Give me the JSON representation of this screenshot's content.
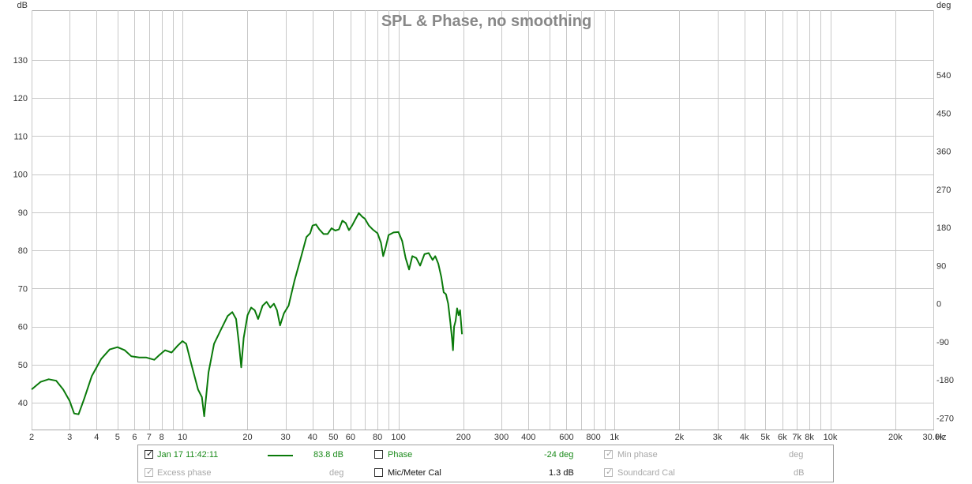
{
  "chart_data": {
    "type": "line",
    "title": "SPL & Phase, no smoothing",
    "left_axis_unit": "dB",
    "right_axis_unit": "deg",
    "x_unit": "Hz",
    "x_scale": "log",
    "xlim": [
      2,
      30000
    ],
    "ylim": [
      33,
      143
    ],
    "y2lim": [
      -297,
      693
    ],
    "grid": true,
    "y_ticks": [
      40,
      50,
      60,
      70,
      80,
      90,
      100,
      110,
      120,
      130
    ],
    "y2_ticks": [
      "-270",
      "-180",
      "-90",
      "0",
      "90",
      "180",
      "270",
      "360",
      "450",
      "540"
    ],
    "x_tick_labels": [
      {
        "v": 2,
        "t": "2"
      },
      {
        "v": 3,
        "t": "3"
      },
      {
        "v": 4,
        "t": "4"
      },
      {
        "v": 5,
        "t": "5"
      },
      {
        "v": 6,
        "t": "6"
      },
      {
        "v": 7,
        "t": "7"
      },
      {
        "v": 8,
        "t": "8"
      },
      {
        "v": 10,
        "t": "10"
      },
      {
        "v": 20,
        "t": "20"
      },
      {
        "v": 30,
        "t": "30"
      },
      {
        "v": 40,
        "t": "40"
      },
      {
        "v": 50,
        "t": "50"
      },
      {
        "v": 60,
        "t": "60"
      },
      {
        "v": 80,
        "t": "80"
      },
      {
        "v": 100,
        "t": "100"
      },
      {
        "v": 200,
        "t": "200"
      },
      {
        "v": 300,
        "t": "300"
      },
      {
        "v": 400,
        "t": "400"
      },
      {
        "v": 600,
        "t": "600"
      },
      {
        "v": 800,
        "t": "800"
      },
      {
        "v": 1000,
        "t": "1k"
      },
      {
        "v": 2000,
        "t": "2k"
      },
      {
        "v": 3000,
        "t": "3k"
      },
      {
        "v": 4000,
        "t": "4k"
      },
      {
        "v": 5000,
        "t": "5k"
      },
      {
        "v": 6000,
        "t": "6k"
      },
      {
        "v": 7000,
        "t": "7k"
      },
      {
        "v": 8000,
        "t": "8k"
      },
      {
        "v": 10000,
        "t": "10k"
      },
      {
        "v": 20000,
        "t": "20k"
      },
      {
        "v": 30000,
        "t": "30.0k"
      }
    ],
    "series": [
      {
        "color": "#0a7a0a",
        "points": [
          [
            2.0,
            43.5
          ],
          [
            2.2,
            45.5
          ],
          [
            2.4,
            46.2
          ],
          [
            2.6,
            45.8
          ],
          [
            2.8,
            43.5
          ],
          [
            3.0,
            40.5
          ],
          [
            3.15,
            37.2
          ],
          [
            3.3,
            37.0
          ],
          [
            3.5,
            41.0
          ],
          [
            3.8,
            47.0
          ],
          [
            4.2,
            51.5
          ],
          [
            4.6,
            54.0
          ],
          [
            5.0,
            54.6
          ],
          [
            5.4,
            53.8
          ],
          [
            5.8,
            52.2
          ],
          [
            6.3,
            51.9
          ],
          [
            6.8,
            51.9
          ],
          [
            7.4,
            51.3
          ],
          [
            7.8,
            52.5
          ],
          [
            8.3,
            53.8
          ],
          [
            8.9,
            53.2
          ],
          [
            9.5,
            55.0
          ],
          [
            10.0,
            56.2
          ],
          [
            10.4,
            55.5
          ],
          [
            11.0,
            50.0
          ],
          [
            11.8,
            43.5
          ],
          [
            12.3,
            41.5
          ],
          [
            12.6,
            36.5
          ],
          [
            13.2,
            48.0
          ],
          [
            14.0,
            55.5
          ],
          [
            15.0,
            59.0
          ],
          [
            16.2,
            62.8
          ],
          [
            17.0,
            63.8
          ],
          [
            17.7,
            62.0
          ],
          [
            18.3,
            55.0
          ],
          [
            18.7,
            49.3
          ],
          [
            19.2,
            57.0
          ],
          [
            20.0,
            63.0
          ],
          [
            20.8,
            65.0
          ],
          [
            21.6,
            64.3
          ],
          [
            22.4,
            62.0
          ],
          [
            23.5,
            65.5
          ],
          [
            24.5,
            66.5
          ],
          [
            25.5,
            65.0
          ],
          [
            26.5,
            66.0
          ],
          [
            27.4,
            64.3
          ],
          [
            28.3,
            60.3
          ],
          [
            29.5,
            63.5
          ],
          [
            31.0,
            65.5
          ],
          [
            33.0,
            72.0
          ],
          [
            35.5,
            78.5
          ],
          [
            37.5,
            83.5
          ],
          [
            39.0,
            84.5
          ],
          [
            40.0,
            86.5
          ],
          [
            41.5,
            86.8
          ],
          [
            43.0,
            85.5
          ],
          [
            45.0,
            84.3
          ],
          [
            47.0,
            84.3
          ],
          [
            49.0,
            85.8
          ],
          [
            51.0,
            85.2
          ],
          [
            53.0,
            85.5
          ],
          [
            55.0,
            87.8
          ],
          [
            57.0,
            87.2
          ],
          [
            59.0,
            85.3
          ],
          [
            61.0,
            86.5
          ],
          [
            63.0,
            88.0
          ],
          [
            65.5,
            89.8
          ],
          [
            68.0,
            88.8
          ],
          [
            70.0,
            88.3
          ],
          [
            73.0,
            86.5
          ],
          [
            76.0,
            85.5
          ],
          [
            80.0,
            84.5
          ],
          [
            83.0,
            82.0
          ],
          [
            85.0,
            78.5
          ],
          [
            87.0,
            80.5
          ],
          [
            90.0,
            84.0
          ],
          [
            95.0,
            84.7
          ],
          [
            100.0,
            84.8
          ],
          [
            104.0,
            82.5
          ],
          [
            108.0,
            78.0
          ],
          [
            112.0,
            75.0
          ],
          [
            116.0,
            78.5
          ],
          [
            121.0,
            78.0
          ],
          [
            126.0,
            76.0
          ],
          [
            132.0,
            79.0
          ],
          [
            138.0,
            79.3
          ],
          [
            144.0,
            77.5
          ],
          [
            148.0,
            78.5
          ],
          [
            153.0,
            76.5
          ],
          [
            158.0,
            73.0
          ],
          [
            162.0,
            69.0
          ],
          [
            166.0,
            68.5
          ],
          [
            170.0,
            66.0
          ],
          [
            174.0,
            61.0
          ],
          [
            177.0,
            57.0
          ],
          [
            179.0,
            53.8
          ],
          [
            181.0,
            60.0
          ],
          [
            184.0,
            61.5
          ],
          [
            187.0,
            64.8
          ],
          [
            190.0,
            63.0
          ],
          [
            193.0,
            64.3
          ],
          [
            197.0,
            58.0
          ]
        ]
      }
    ]
  },
  "legend": {
    "row1": {
      "label": "Jan 17 11:42:11",
      "value": "83.8 dB",
      "phase_label": "Phase",
      "phase_value": "-24 deg",
      "minphase_label": "Min phase",
      "minphase_unit": "deg"
    },
    "row2": {
      "excess_label": "Excess phase",
      "excess_unit": "deg",
      "miccal_label": "Mic/Meter Cal",
      "miccal_value": "1.3 dB",
      "soundcard_label": "Soundcard Cal",
      "soundcard_unit": "dB"
    },
    "checkmark": "✓"
  }
}
